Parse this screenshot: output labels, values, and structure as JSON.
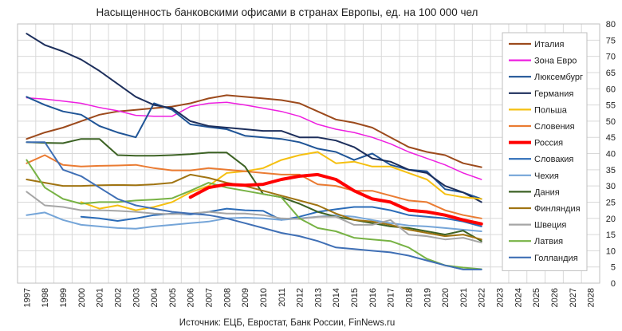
{
  "chart_data": {
    "type": "line",
    "title": "Насыщенность банковскими офисами в странах Европы, ед. на 100 000 чел",
    "source": "Источник: ЕЦБ, Евростат, Банк России, FinNews.ru",
    "xlabel": "",
    "ylabel": "",
    "x": [
      1997,
      1998,
      1999,
      2000,
      2001,
      2002,
      2003,
      2004,
      2005,
      2006,
      2007,
      2008,
      2009,
      2010,
      2011,
      2012,
      2013,
      2014,
      2015,
      2016,
      2017,
      2018,
      2019,
      2020,
      2021,
      2022
    ],
    "x_ticks": [
      "1997",
      "1998",
      "1999",
      "2000",
      "2001",
      "2002",
      "2003",
      "2004",
      "2005",
      "2006",
      "2007",
      "2008",
      "2009",
      "2010",
      "2011",
      "2012",
      "2013",
      "2014",
      "2015",
      "2016",
      "2017",
      "2018",
      "2019",
      "2020",
      "2021",
      "2022",
      "2023",
      "2024",
      "2025",
      "2026",
      "2027",
      "2028"
    ],
    "xlim": [
      1997,
      2028
    ],
    "ylim": [
      0,
      80
    ],
    "y_ticks": [
      "0",
      "5",
      "10",
      "15",
      "20",
      "25",
      "30",
      "35",
      "40",
      "45",
      "50",
      "55",
      "60",
      "65",
      "70",
      "75",
      "80"
    ],
    "y_axis_side": "right",
    "grid": true,
    "legend_position": "right",
    "series": [
      {
        "name": "Италия",
        "color": "#9c4a1c",
        "width": 2,
        "values": [
          44.5,
          46.5,
          48,
          50,
          52,
          53,
          53.5,
          54,
          54.5,
          55.5,
          57,
          58,
          57.5,
          57,
          56.5,
          55.5,
          53,
          50.5,
          49.5,
          48,
          45,
          42,
          40.5,
          39.5,
          37,
          35.8
        ]
      },
      {
        "name": "Зона Евро",
        "color": "#ee1ee0",
        "width": 1.5,
        "values": [
          57.2,
          56.8,
          56.2,
          55.5,
          54.2,
          53.2,
          51.8,
          51.5,
          51.5,
          54.5,
          55.5,
          55.8,
          55,
          54,
          53,
          51.5,
          49,
          47.5,
          46.5,
          45,
          43,
          40.5,
          38.5,
          36.5,
          34,
          32
        ]
      },
      {
        "name": "Люксембург",
        "color": "#1f5496",
        "width": 2,
        "values": [
          57.5,
          55,
          53,
          52,
          48.5,
          46.5,
          45,
          55.5,
          53.5,
          49,
          48.2,
          47.5,
          45.5,
          45,
          44.5,
          43.5,
          41.5,
          40.5,
          38,
          40,
          36.5,
          35,
          34.5,
          29,
          28,
          26
        ]
      },
      {
        "name": "Германия",
        "color": "#1d2f5c",
        "width": 2,
        "values": [
          77,
          73.5,
          71.5,
          69,
          65.5,
          61.5,
          57.5,
          55,
          54,
          50,
          48.5,
          48,
          47.5,
          47,
          47,
          45,
          45,
          44,
          42,
          38.5,
          37.5,
          35,
          34,
          30,
          28,
          25
        ]
      },
      {
        "name": "Польша",
        "color": "#f5c011",
        "width": 2,
        "values": [
          null,
          null,
          null,
          25,
          23,
          24,
          22.5,
          23.5,
          25,
          28,
          30,
          34,
          34.5,
          35.5,
          38,
          39.5,
          40.5,
          37,
          37.5,
          36,
          36,
          34,
          32,
          27.5,
          26.5,
          26
        ]
      },
      {
        "name": "Словения",
        "color": "#ea7b32",
        "width": 2,
        "values": [
          37,
          39.5,
          36.5,
          36,
          36.2,
          36.3,
          36.5,
          35.5,
          34.8,
          34.8,
          35.5,
          35,
          34.5,
          34,
          33.5,
          33.5,
          30.5,
          30,
          28.5,
          28.5,
          27,
          25.5,
          25,
          22.5,
          21,
          20
        ]
      },
      {
        "name": "Россия",
        "color": "#ff0000",
        "width": 4,
        "values": [
          null,
          null,
          null,
          null,
          null,
          null,
          null,
          null,
          null,
          26.5,
          29.5,
          30.5,
          30.2,
          30.5,
          32,
          33,
          33.5,
          32,
          28.5,
          26,
          25,
          22.5,
          22,
          21,
          19.5,
          18.3
        ]
      },
      {
        "name": "Словакия",
        "color": "#2b6cb8",
        "width": 2,
        "values": [
          null,
          null,
          null,
          20.5,
          20,
          19.2,
          20,
          21,
          21.5,
          21.2,
          22,
          23,
          22.5,
          22.3,
          19.5,
          20.5,
          22,
          22.8,
          23.5,
          23.5,
          22.5,
          21,
          20.5,
          20,
          19,
          17.5
        ]
      },
      {
        "name": "Чехия",
        "color": "#75a5d8",
        "width": 2,
        "values": [
          21,
          21.8,
          19.5,
          18,
          17.5,
          17,
          16.8,
          17.5,
          18,
          18.5,
          19,
          20,
          20.2,
          20,
          19.5,
          20,
          20.5,
          21,
          20.5,
          19.5,
          18.5,
          17.8,
          17.5,
          17,
          16.5,
          16
        ]
      },
      {
        "name": "Дания",
        "color": "#3c6224",
        "width": 2,
        "values": [
          43.5,
          43.3,
          43.2,
          44.5,
          44.5,
          39.5,
          39.3,
          39.3,
          39.5,
          39.8,
          40.3,
          40.3,
          36,
          27.5,
          26.5,
          24.5,
          22,
          20.5,
          19.5,
          18.5,
          17.5,
          17,
          16,
          15,
          16.2,
          13
        ]
      },
      {
        "name": "Финляндия",
        "color": "#a07412",
        "width": 2,
        "values": [
          32,
          31,
          30,
          30,
          30.2,
          30.3,
          30.2,
          30.5,
          31,
          33.5,
          32.5,
          31,
          30,
          28.5,
          27,
          25.5,
          24,
          21.5,
          19.5,
          19,
          18,
          16.5,
          15.5,
          14.5,
          15,
          13.5
        ]
      },
      {
        "name": "Швеция",
        "color": "#a6a6a6",
        "width": 2,
        "values": [
          28.2,
          24,
          23.5,
          22.5,
          22.5,
          22.3,
          22,
          21.5,
          21.3,
          21.5,
          22,
          21.5,
          21.5,
          21,
          20,
          19.8,
          20.5,
          20.5,
          18,
          18,
          19.5,
          15,
          14.5,
          13.5,
          14,
          12.5
        ]
      },
      {
        "name": "Латвия",
        "color": "#77b244",
        "width": 2,
        "values": [
          38,
          29.5,
          26,
          24.5,
          25,
          25,
          25.5,
          25.8,
          26.2,
          28.5,
          31,
          29.5,
          28.5,
          27.5,
          26.5,
          20,
          17,
          16,
          14,
          13.5,
          13,
          11,
          7.5,
          5.5,
          4.8,
          4.3
        ]
      },
      {
        "name": "Голландия",
        "color": "#3f6fb5",
        "width": 2,
        "values": [
          43.5,
          43.5,
          35,
          33,
          29.5,
          26,
          24,
          23,
          22,
          21.5,
          21,
          20,
          18.5,
          17,
          15.5,
          14.5,
          13,
          11,
          10.5,
          10,
          9.5,
          8.5,
          7,
          5.5,
          4.2,
          4.2
        ]
      }
    ]
  }
}
